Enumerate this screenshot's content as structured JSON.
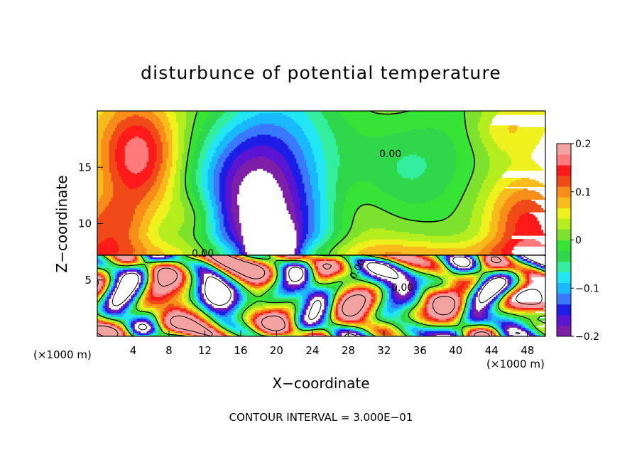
{
  "chart_data": {
    "type": "heatmap",
    "title": "disturbunce of potential temperature",
    "xlabel": "X−coordinate",
    "ylabel": "Z−coordinate",
    "x_unit": "(×1000 m)",
    "xlim": [
      0,
      50
    ],
    "ylim": [
      0,
      20
    ],
    "x_ticks": [
      "4",
      "8",
      "12",
      "16",
      "20",
      "24",
      "28",
      "32",
      "36",
      "40",
      "44",
      "48"
    ],
    "y_ticks": [
      "5",
      "10",
      "15"
    ],
    "footer": "CONTOUR INTERVAL = 3.000E−01",
    "contour_labels": [
      "0.00",
      "0.00",
      "0.00",
      "0.00"
    ],
    "colorbar": {
      "range": [
        -0.2,
        0.2
      ],
      "tick_labels": [
        "0.2",
        "0.1",
        "0",
        "−0.1",
        "−0.2"
      ],
      "colors": [
        "#7e1fa8",
        "#5a14d2",
        "#1c1ee8",
        "#3a78ff",
        "#19b8ff",
        "#21e6f3",
        "#32ee9e",
        "#2fd74a",
        "#35e435",
        "#7de22d",
        "#b5ee1e",
        "#eef11d",
        "#f7bc1c",
        "#f78c18",
        "#ef4a18",
        "#ff1a1a",
        "#ff7a7a",
        "#f3a2a2"
      ]
    },
    "boundary_height": 7.2,
    "plumes": [
      {
        "x": 18.4,
        "z": 11.0,
        "rx": 7.5,
        "rz": 10.0,
        "amp": -0.26
      },
      {
        "x": 4.6,
        "z": 16.5,
        "rx": 4.5,
        "rz": 5.0,
        "amp": 0.14
      },
      {
        "x": 1.5,
        "z": 9.5,
        "rx": 4.0,
        "rz": 2.8,
        "amp": 0.09
      },
      {
        "x": 36.5,
        "z": 15.5,
        "rx": 10.0,
        "rz": 6.0,
        "amp": -0.07
      },
      {
        "x": 47.8,
        "z": 10.0,
        "rx": 4.5,
        "rz": 4.5,
        "amp": 0.12
      },
      {
        "x": 29.0,
        "z": 11.0,
        "rx": 4.0,
        "rz": 4.0,
        "amp": 0.03
      },
      {
        "x": 11.0,
        "z": 10.5,
        "rx": 3.0,
        "rz": 2.5,
        "amp": 0.06
      },
      {
        "x": 45.5,
        "z": 18.5,
        "rx": 4.0,
        "rz": 2.5,
        "amp": 0.06
      }
    ]
  }
}
